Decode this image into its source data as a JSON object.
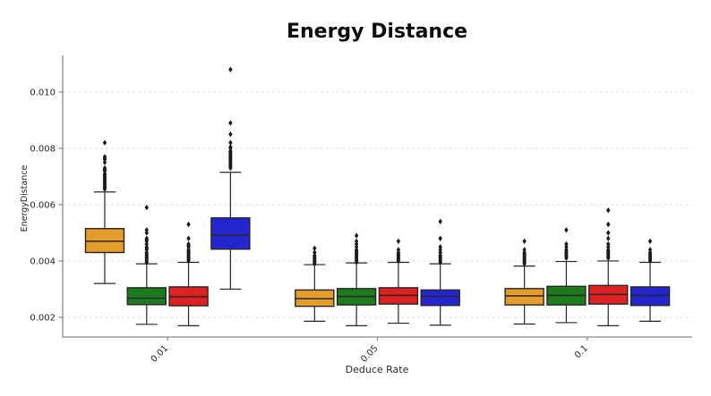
{
  "style": {
    "background": "#ffffff",
    "spine_color": "#8a8a8a",
    "grid_color": "#e2e2e2",
    "box_edge_color": "#262626",
    "outlier_color": "#1a1a1a",
    "series_colors": {
      "orange": "#E49C2C",
      "green": "#1D7A1D",
      "red": "#DE2121",
      "blue": "#2525CF"
    }
  },
  "chart_data": {
    "type": "boxplot",
    "title": "Energy Distance",
    "xlabel": "Deduce Rate",
    "ylabel": "EnergyDistance",
    "categories": [
      "0.01",
      "0.05",
      "0.1"
    ],
    "y_ticks": [
      0.002,
      0.004,
      0.006,
      0.008,
      0.01
    ],
    "y_tick_labels": [
      "0.002",
      "0.004",
      "0.006",
      "0.008",
      "0.010"
    ],
    "ylim": [
      0.0013,
      0.0113
    ],
    "grid": "horizontal-dashed",
    "legend": "none",
    "series": [
      {
        "name": "orange",
        "color": "#E49C2C",
        "boxes": [
          {
            "whisker_low": 0.0032,
            "q1": 0.0043,
            "median": 0.0047,
            "q3": 0.00515,
            "whisker_high": 0.00645,
            "outliers": [
              0.00655,
              0.0066,
              0.00665,
              0.0067,
              0.00675,
              0.0068,
              0.00685,
              0.0069,
              0.00695,
              0.007,
              0.00705,
              0.0071,
              0.0072,
              0.00725,
              0.0073,
              0.0075,
              0.0076,
              0.00765,
              0.0077,
              0.0082
            ]
          },
          {
            "whisker_low": 0.00186,
            "q1": 0.00239,
            "median": 0.00266,
            "q3": 0.00297,
            "whisker_high": 0.00387,
            "outliers": [
              0.0039,
              0.00395,
              0.004,
              0.00405,
              0.0041,
              0.00415,
              0.0042,
              0.0043,
              0.00445
            ]
          },
          {
            "whisker_low": 0.00176,
            "q1": 0.00244,
            "median": 0.00276,
            "q3": 0.00302,
            "whisker_high": 0.00382,
            "outliers": [
              0.0039,
              0.00395,
              0.004,
              0.00405,
              0.0041,
              0.00415,
              0.0042,
              0.00425,
              0.0043,
              0.0044,
              0.0047
            ]
          }
        ]
      },
      {
        "name": "green",
        "color": "#1D7A1D",
        "boxes": [
          {
            "whisker_low": 0.00175,
            "q1": 0.00245,
            "median": 0.00268,
            "q3": 0.00305,
            "whisker_high": 0.0039,
            "outliers": [
              0.00395,
              0.004,
              0.00405,
              0.0041,
              0.00415,
              0.0042,
              0.00425,
              0.0043,
              0.0044,
              0.00445,
              0.0045,
              0.0046,
              0.0047,
              0.00475,
              0.0048,
              0.005,
              0.0051,
              0.0059
            ]
          },
          {
            "whisker_low": 0.0017,
            "q1": 0.00244,
            "median": 0.00274,
            "q3": 0.00302,
            "whisker_high": 0.00393,
            "outliers": [
              0.00395,
              0.004,
              0.00405,
              0.0041,
              0.00415,
              0.0042,
              0.00425,
              0.0043,
              0.00435,
              0.0044,
              0.0045,
              0.0046,
              0.0047,
              0.0049
            ]
          },
          {
            "whisker_low": 0.00181,
            "q1": 0.00244,
            "median": 0.00278,
            "q3": 0.0031,
            "whisker_high": 0.00398,
            "outliers": [
              0.0041,
              0.00415,
              0.0042,
              0.00425,
              0.0043,
              0.00435,
              0.0044,
              0.0045,
              0.0046,
              0.0051
            ]
          }
        ]
      },
      {
        "name": "red",
        "color": "#DE2121",
        "boxes": [
          {
            "whisker_low": 0.0017,
            "q1": 0.00241,
            "median": 0.00273,
            "q3": 0.00308,
            "whisker_high": 0.00395,
            "outliers": [
              0.004,
              0.00405,
              0.0041,
              0.00415,
              0.0042,
              0.00425,
              0.0043,
              0.00435,
              0.0044,
              0.0045,
              0.00455,
              0.0046,
              0.0048,
              0.0053
            ]
          },
          {
            "whisker_low": 0.00179,
            "q1": 0.00247,
            "median": 0.00278,
            "q3": 0.00305,
            "whisker_high": 0.00395,
            "outliers": [
              0.004,
              0.00405,
              0.0041,
              0.00415,
              0.0042,
              0.00425,
              0.0043,
              0.0044,
              0.0047
            ]
          },
          {
            "whisker_low": 0.0017,
            "q1": 0.00247,
            "median": 0.00281,
            "q3": 0.00313,
            "whisker_high": 0.004,
            "outliers": [
              0.0041,
              0.00415,
              0.0042,
              0.00425,
              0.0043,
              0.00435,
              0.0044,
              0.0045,
              0.0046,
              0.0048,
              0.005,
              0.0053,
              0.0058
            ]
          }
        ]
      },
      {
        "name": "blue",
        "color": "#2525CF",
        "boxes": [
          {
            "whisker_low": 0.003,
            "q1": 0.00442,
            "median": 0.00492,
            "q3": 0.00553,
            "whisker_high": 0.00715,
            "outliers": [
              0.0073,
              0.00735,
              0.0074,
              0.00745,
              0.0075,
              0.00755,
              0.0076,
              0.00765,
              0.0077,
              0.00775,
              0.0078,
              0.00785,
              0.0079,
              0.008,
              0.00805,
              0.0082,
              0.0085,
              0.0089,
              0.0108
            ]
          },
          {
            "whisker_low": 0.00172,
            "q1": 0.00242,
            "median": 0.00274,
            "q3": 0.00297,
            "whisker_high": 0.0039,
            "outliers": [
              0.00395,
              0.004,
              0.00405,
              0.0041,
              0.00415,
              0.0042,
              0.0043,
              0.0044,
              0.0045,
              0.0048,
              0.0054
            ]
          },
          {
            "whisker_low": 0.00186,
            "q1": 0.00242,
            "median": 0.00278,
            "q3": 0.00308,
            "whisker_high": 0.00395,
            "outliers": [
              0.004,
              0.00405,
              0.0041,
              0.00415,
              0.0042,
              0.00425,
              0.0043,
              0.0044,
              0.0047
            ]
          }
        ]
      }
    ]
  }
}
